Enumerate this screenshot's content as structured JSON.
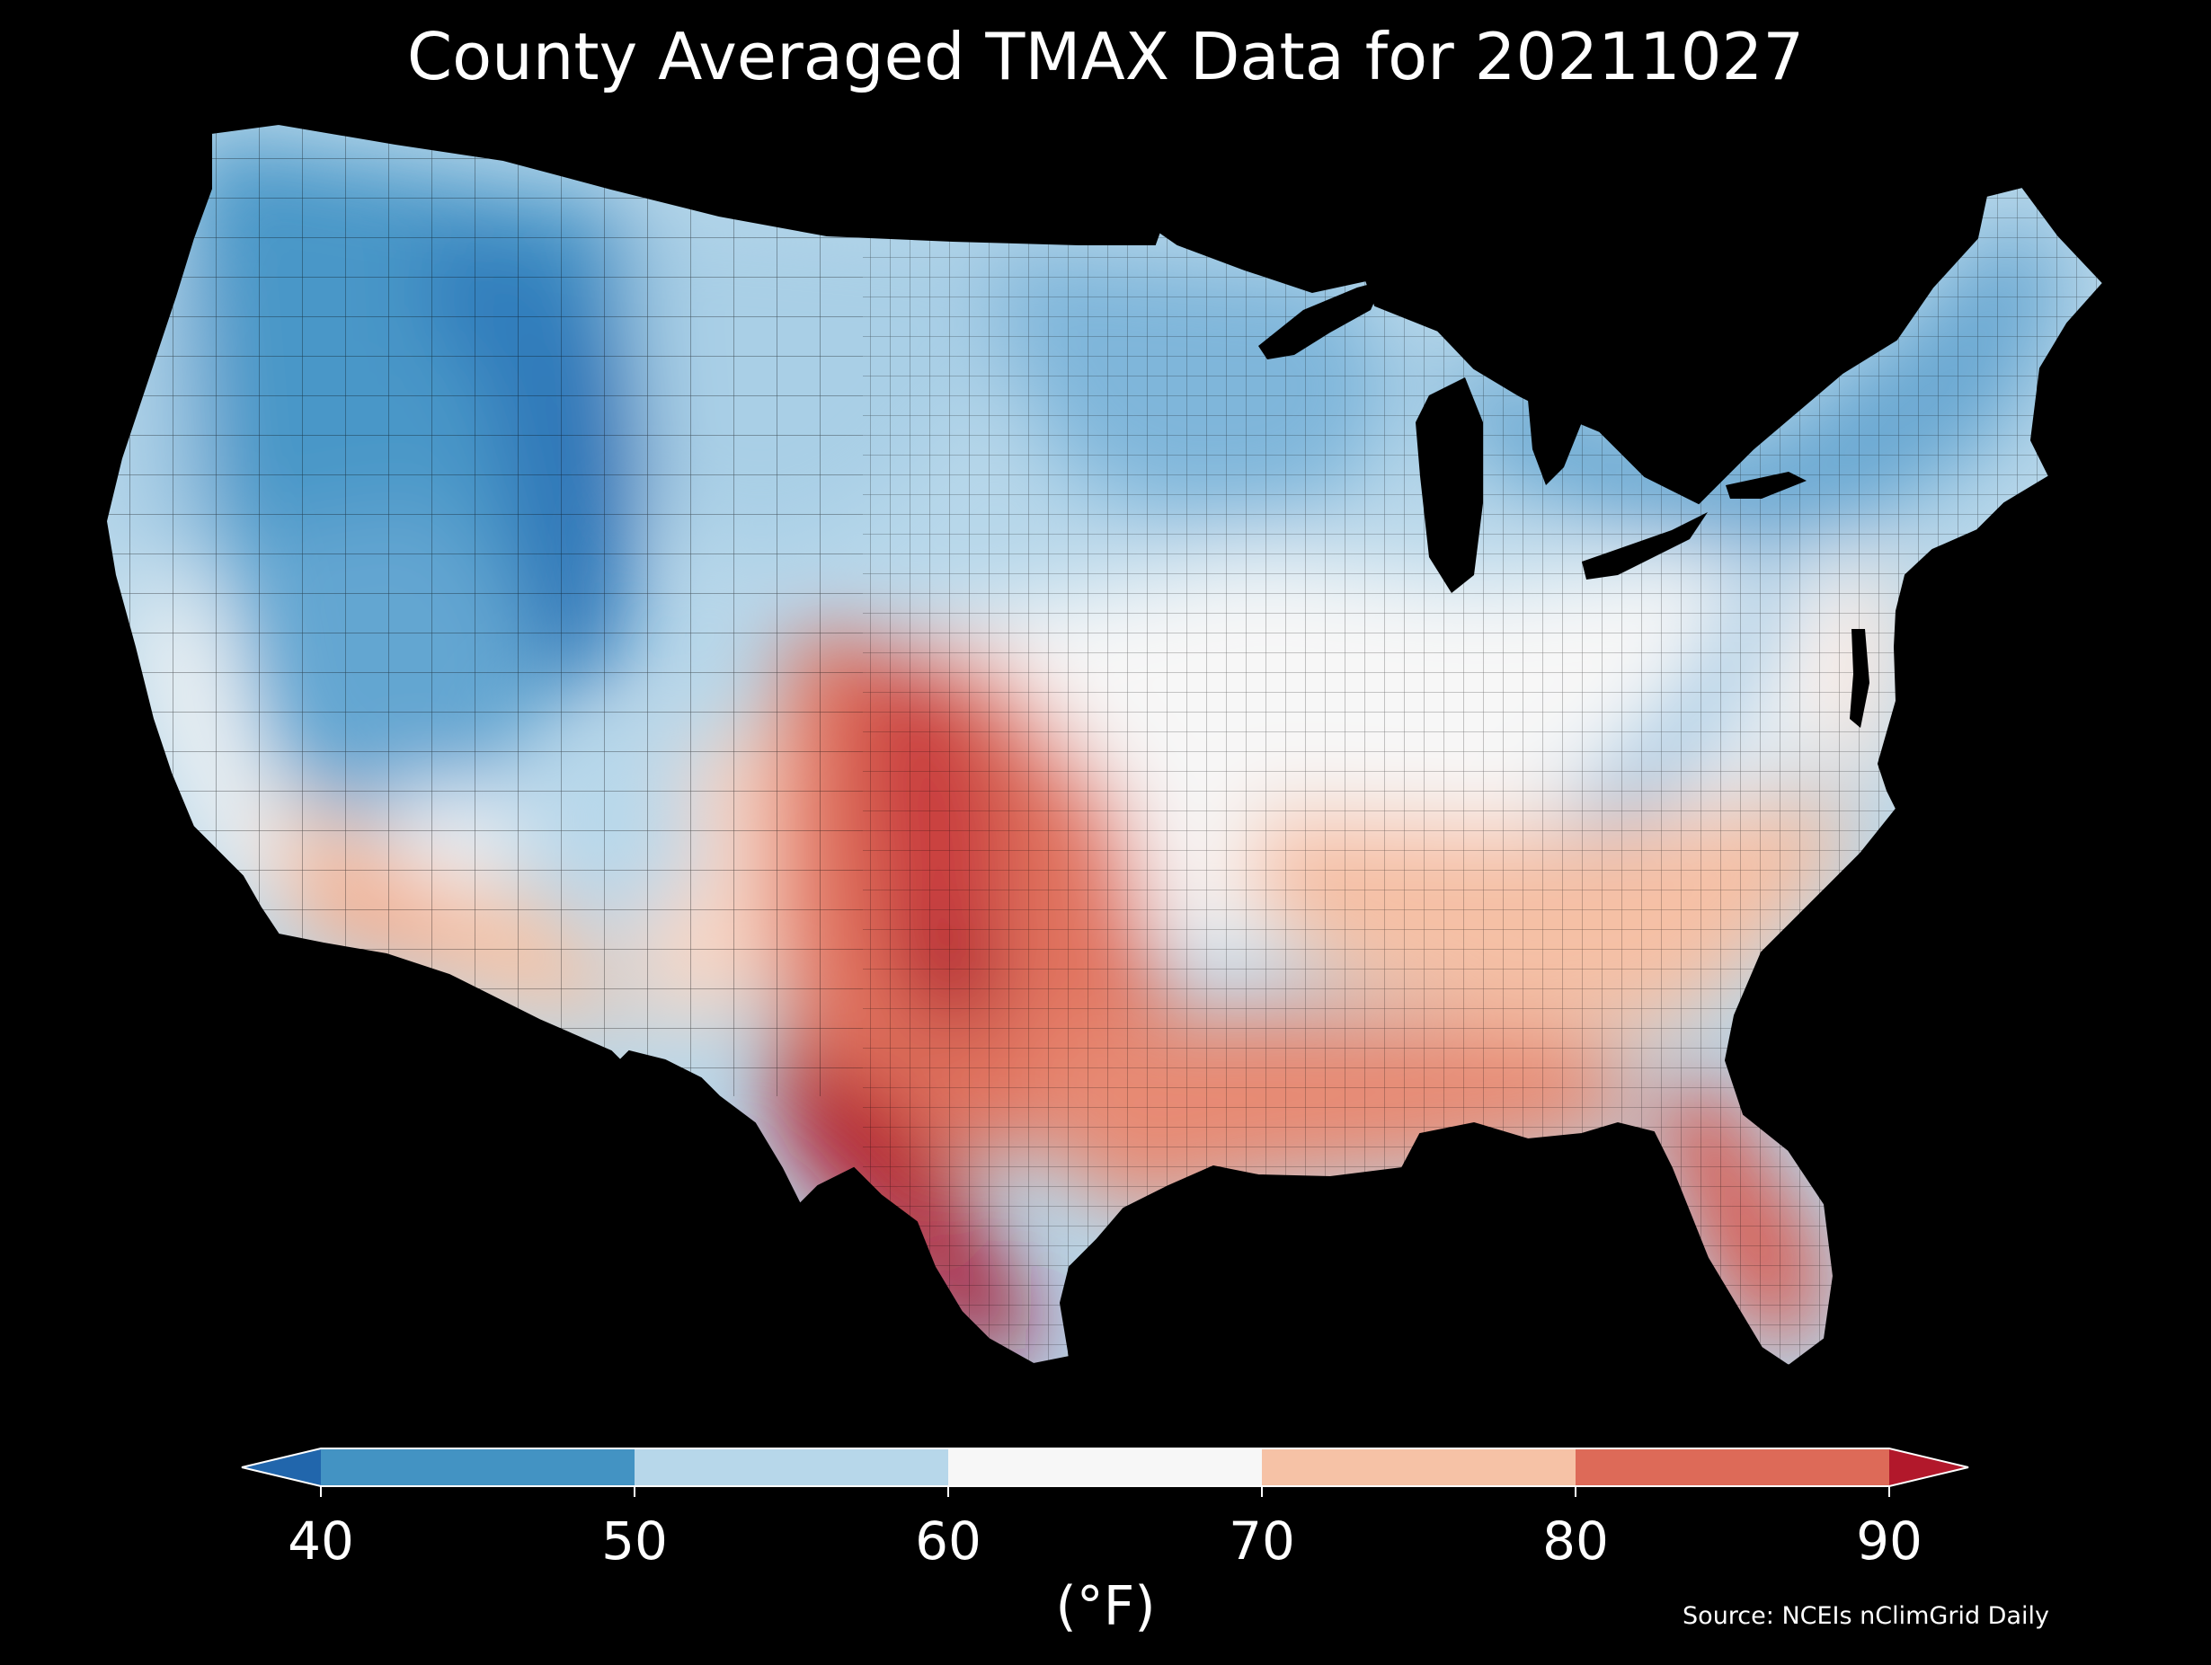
{
  "title": "County Averaged TMAX Data for 20211027",
  "colorbar": {
    "unit_label": "(°F)",
    "ticks": [
      "40",
      "50",
      "60",
      "70",
      "80",
      "90"
    ],
    "extend": "both",
    "bins": [
      {
        "range": "<40",
        "color": "#2166ac"
      },
      {
        "range": "40-50",
        "color": "#4393c3"
      },
      {
        "range": "50-60",
        "color": "#b7d7ea"
      },
      {
        "range": "60-70",
        "color": "#f7f7f7"
      },
      {
        "range": "70-80",
        "color": "#f6c2a6"
      },
      {
        "range": "80-90",
        "color": "#dd6a58"
      },
      {
        "range": ">90",
        "color": "#b2182b"
      }
    ]
  },
  "source": "Source: NCEIs nClimGrid Daily",
  "map": {
    "region": "Contiguous United States",
    "variable": "TMAX",
    "date": "20211027",
    "background": "#000000",
    "border_color": "#000000",
    "regions": [
      {
        "name": "northwest-coast",
        "tmax_band": "50-60"
      },
      {
        "name": "northern-rockies",
        "tmax_band": "40-50"
      },
      {
        "name": "central-rockies-core",
        "tmax_band": "<40"
      },
      {
        "name": "great-basin",
        "tmax_band": "40-50"
      },
      {
        "name": "northern-plains",
        "tmax_band": "50-60"
      },
      {
        "name": "upper-midwest",
        "tmax_band": "40-50"
      },
      {
        "name": "great-lakes-northeast",
        "tmax_band": "40-50"
      },
      {
        "name": "midwest-ohio-valley",
        "tmax_band": "60-70"
      },
      {
        "name": "appalachians",
        "tmax_band": "50-60"
      },
      {
        "name": "california-coast",
        "tmax_band": "60-70"
      },
      {
        "name": "southern-california-arizona",
        "tmax_band": "70-80"
      },
      {
        "name": "new-mexico-west-texas",
        "tmax_band": "70-80"
      },
      {
        "name": "southern-plains",
        "tmax_band": "80-90"
      },
      {
        "name": "oklahoma-north-texas-core",
        "tmax_band": ">90"
      },
      {
        "name": "south-texas",
        "tmax_band": ">90"
      },
      {
        "name": "gulf-coast",
        "tmax_band": "80-90"
      },
      {
        "name": "southeast",
        "tmax_band": "70-80"
      },
      {
        "name": "florida",
        "tmax_band": "80-90"
      },
      {
        "name": "mid-atlantic-coast",
        "tmax_band": "60-70"
      }
    ]
  }
}
